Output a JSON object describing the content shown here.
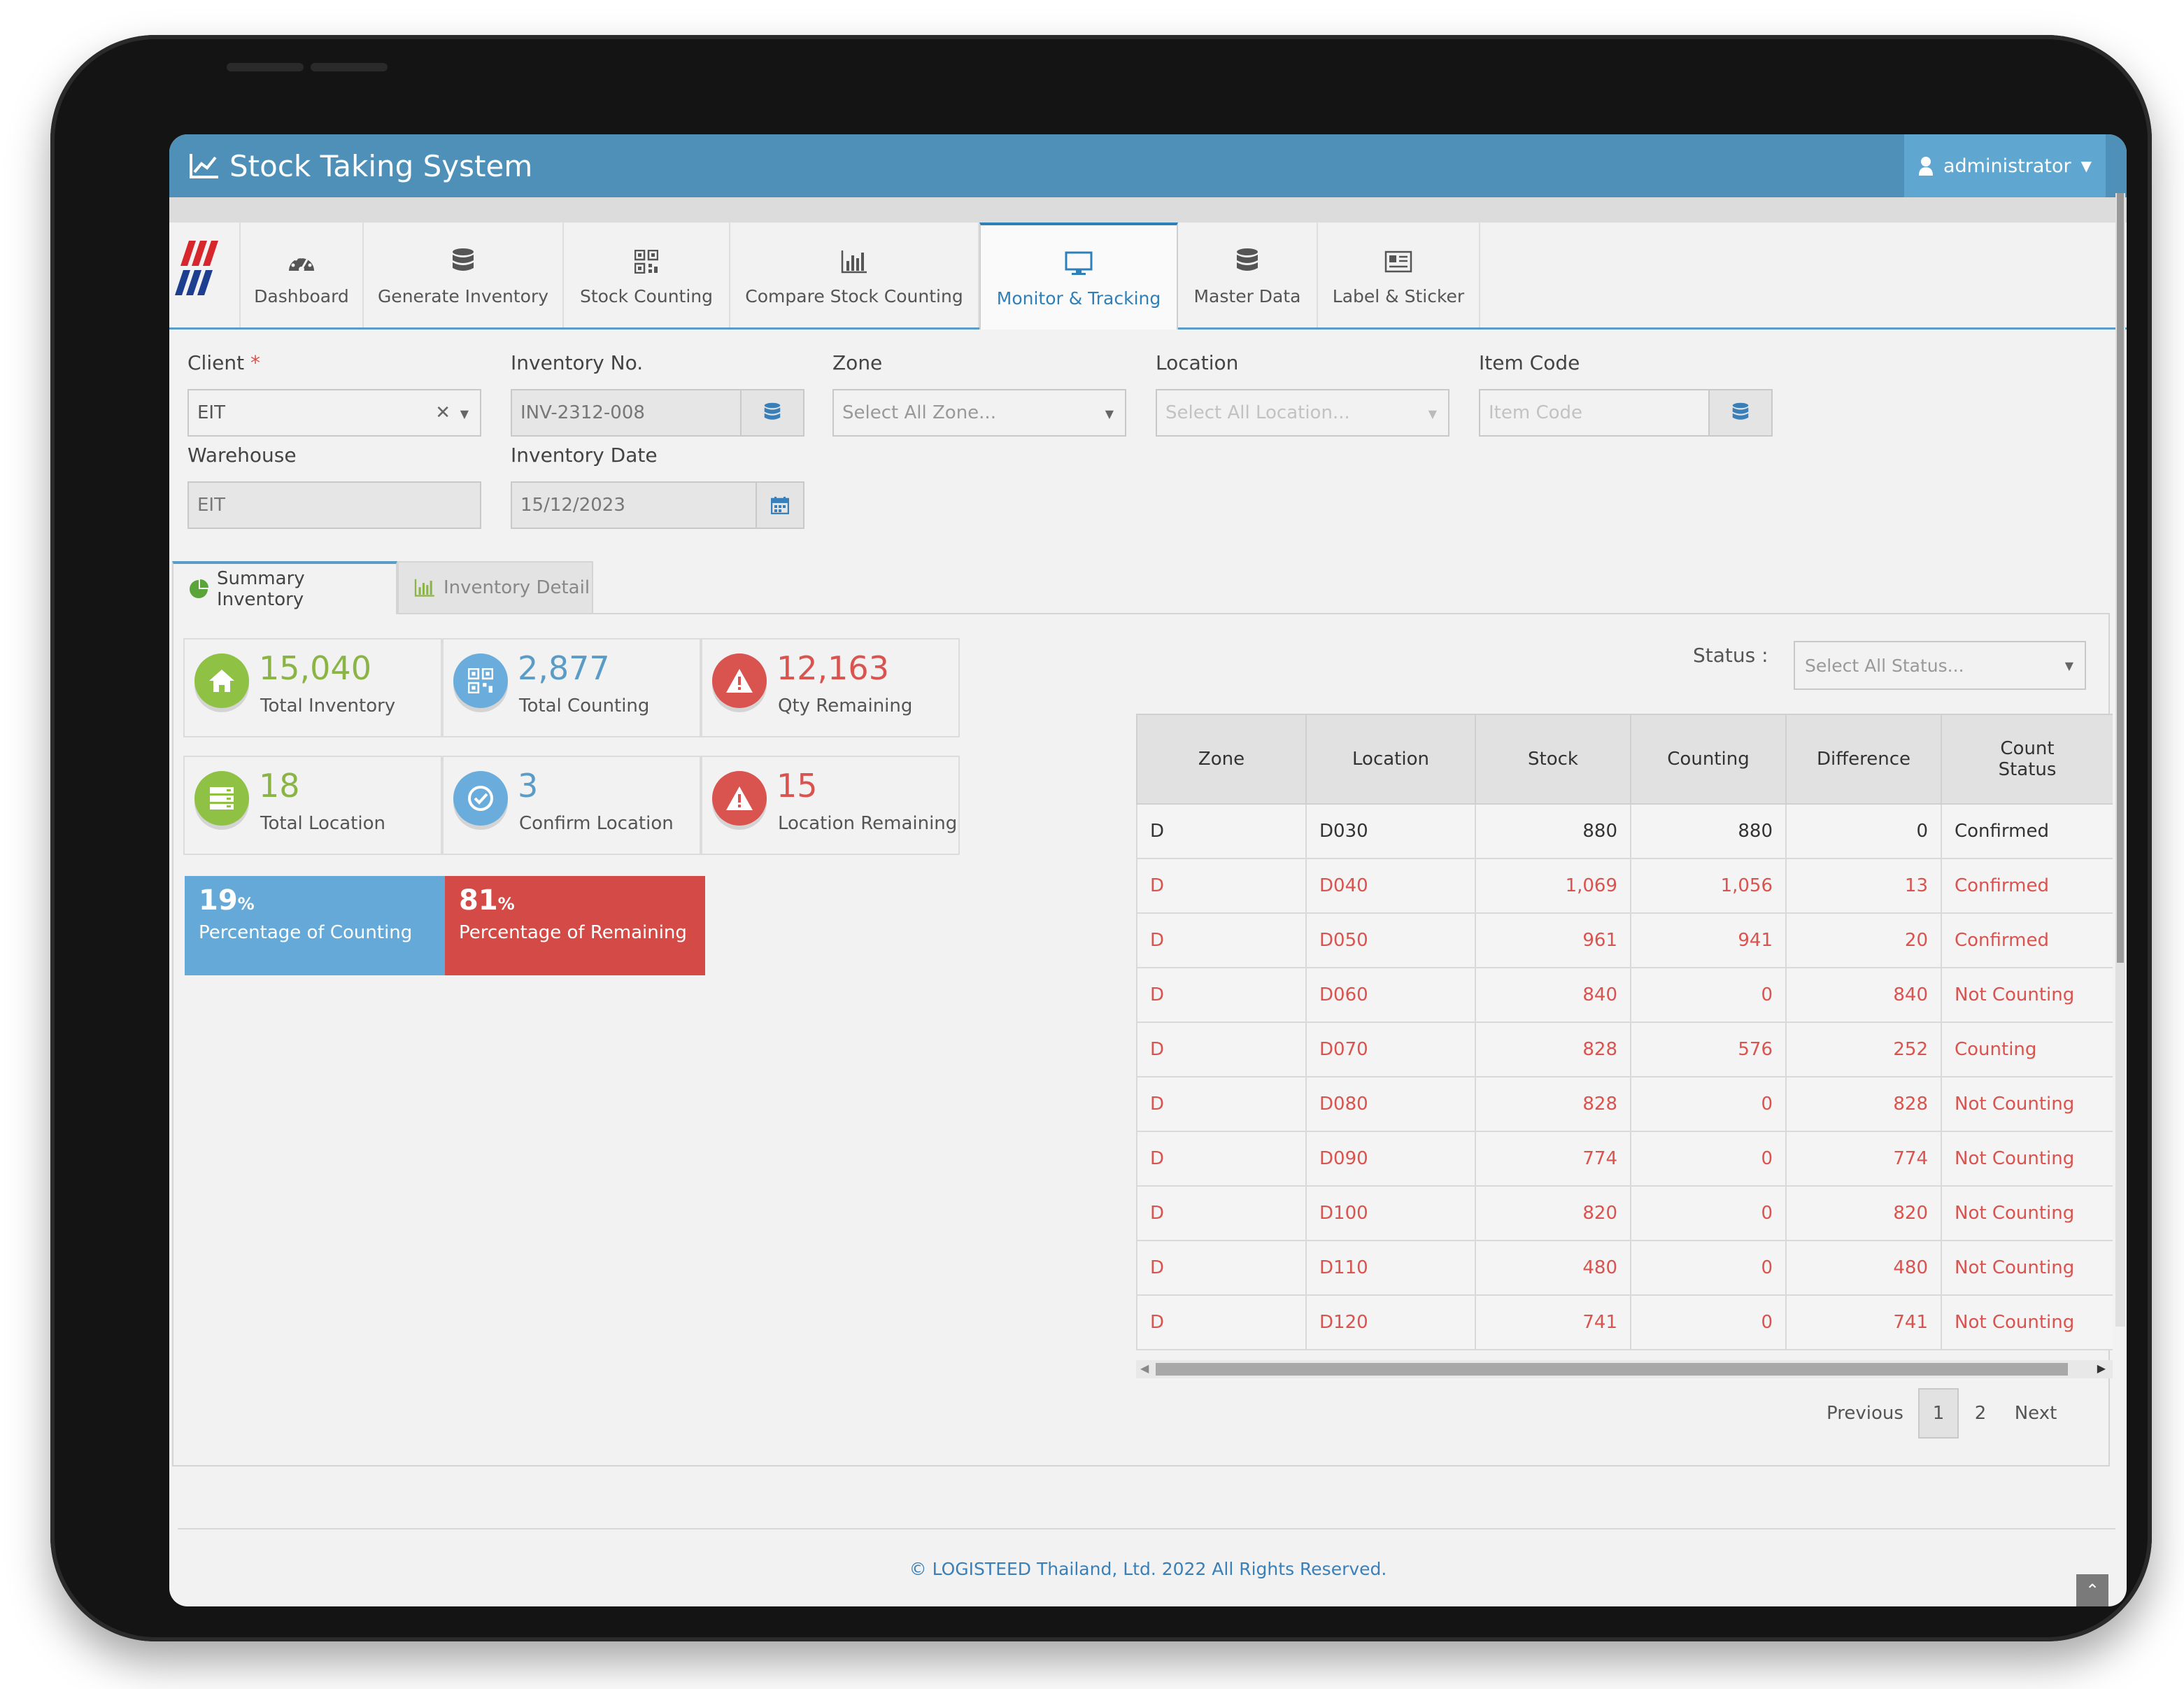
{
  "app": {
    "title": "Stock Taking System",
    "user": "administrator"
  },
  "nav": {
    "items": [
      {
        "label": "Dashboard",
        "icon": "dashboard-icon"
      },
      {
        "label": "Generate Inventory",
        "icon": "database-icon"
      },
      {
        "label": "Stock Counting",
        "icon": "qrcode-icon"
      },
      {
        "label": "Compare Stock Counting",
        "icon": "bar-chart-icon"
      },
      {
        "label": "Monitor & Tracking",
        "icon": "monitor-icon",
        "active": true
      },
      {
        "label": "Master Data",
        "icon": "database-icon"
      },
      {
        "label": "Label & Sticker",
        "icon": "label-icon"
      }
    ]
  },
  "filters": {
    "client": {
      "label": "Client",
      "required_mark": "*",
      "value": "EIT"
    },
    "inventory_no": {
      "label": "Inventory No.",
      "value": "INV-2312-008"
    },
    "zone": {
      "label": "Zone",
      "placeholder": "Select All Zone..."
    },
    "location": {
      "label": "Location",
      "placeholder": "Select All Location..."
    },
    "item_code": {
      "label": "Item Code",
      "placeholder": "Item Code"
    },
    "warehouse": {
      "label": "Warehouse",
      "value": "EIT"
    },
    "inventory_date": {
      "label": "Inventory Date",
      "value": "15/12/2023"
    }
  },
  "tabs": [
    {
      "label": "Summary Inventory",
      "active": true
    },
    {
      "label": "Inventory Detail",
      "active": false
    }
  ],
  "summary": {
    "total_inventory": {
      "value": "15,040",
      "label": "Total Inventory"
    },
    "total_counting": {
      "value": "2,877",
      "label": "Total Counting"
    },
    "qty_remaining": {
      "value": "12,163",
      "label": "Qty Remaining"
    },
    "total_location": {
      "value": "18",
      "label": "Total Location"
    },
    "confirm_location": {
      "value": "3",
      "label": "Confirm Location"
    },
    "location_remaining": {
      "value": "15",
      "label": "Location Remaining"
    },
    "percentage_counting": {
      "value": "19",
      "unit": "%",
      "label": "Percentage of Counting"
    },
    "percentage_remaining": {
      "value": "81",
      "unit": "%",
      "label": "Percentage of Remaining"
    }
  },
  "status_filter": {
    "label": "Status :",
    "placeholder": "Select All Status..."
  },
  "table": {
    "columns": [
      "Zone",
      "Location",
      "Stock",
      "Counting",
      "Difference",
      "Count Status"
    ],
    "rows": [
      {
        "zone": "D",
        "location": "D030",
        "stock": "880",
        "counting": "880",
        "difference": "0",
        "status": "Confirmed",
        "highlight": false
      },
      {
        "zone": "D",
        "location": "D040",
        "stock": "1,069",
        "counting": "1,056",
        "difference": "13",
        "status": "Confirmed",
        "highlight": true
      },
      {
        "zone": "D",
        "location": "D050",
        "stock": "961",
        "counting": "941",
        "difference": "20",
        "status": "Confirmed",
        "highlight": true
      },
      {
        "zone": "D",
        "location": "D060",
        "stock": "840",
        "counting": "0",
        "difference": "840",
        "status": "Not Counting",
        "highlight": true
      },
      {
        "zone": "D",
        "location": "D070",
        "stock": "828",
        "counting": "576",
        "difference": "252",
        "status": "Counting",
        "highlight": true
      },
      {
        "zone": "D",
        "location": "D080",
        "stock": "828",
        "counting": "0",
        "difference": "828",
        "status": "Not Counting",
        "highlight": true
      },
      {
        "zone": "D",
        "location": "D090",
        "stock": "774",
        "counting": "0",
        "difference": "774",
        "status": "Not Counting",
        "highlight": true
      },
      {
        "zone": "D",
        "location": "D100",
        "stock": "820",
        "counting": "0",
        "difference": "820",
        "status": "Not Counting",
        "highlight": true
      },
      {
        "zone": "D",
        "location": "D110",
        "stock": "480",
        "counting": "0",
        "difference": "480",
        "status": "Not Counting",
        "highlight": true
      },
      {
        "zone": "D",
        "location": "D120",
        "stock": "741",
        "counting": "0",
        "difference": "741",
        "status": "Not Counting",
        "highlight": true
      }
    ]
  },
  "pagination": {
    "previous": "Previous",
    "pages": [
      "1",
      "2"
    ],
    "current": "1",
    "next": "Next"
  },
  "footer": {
    "text": "© LOGISTEED Thailand, Ltd. 2022 All Rights Reserved."
  },
  "colors": {
    "topbar": "#4e90b8",
    "accent": "#2f80b8",
    "green": "#8ec144",
    "blue": "#6aaddc",
    "red": "#d9534f"
  }
}
